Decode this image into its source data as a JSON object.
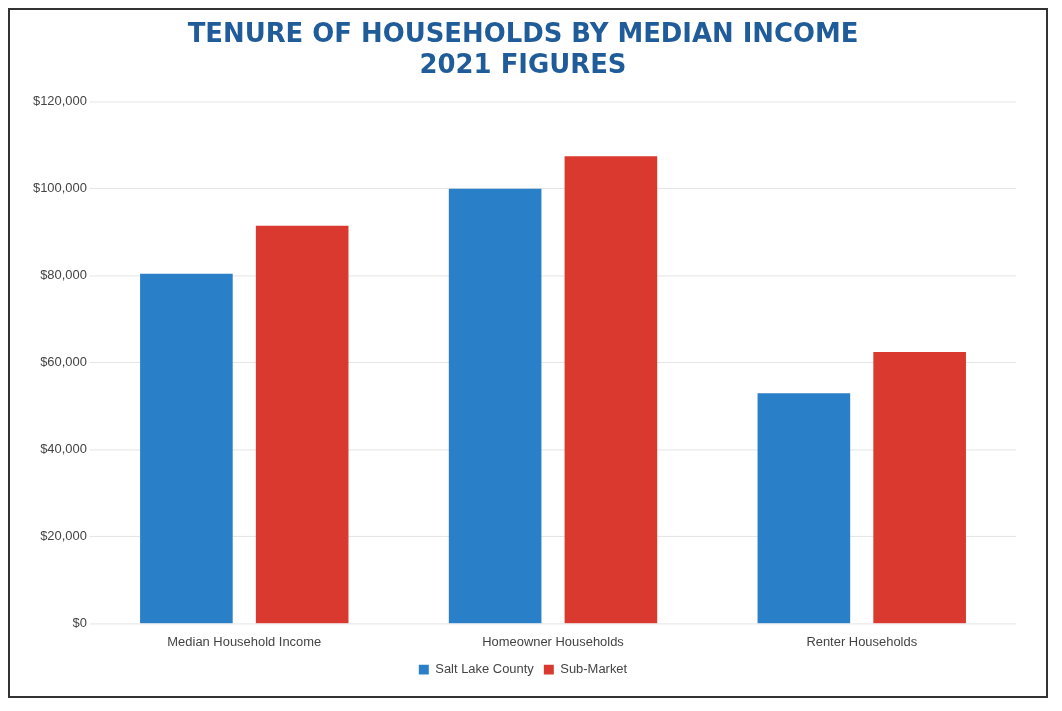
{
  "chart_data": {
    "type": "bar",
    "title": "TENURE OF HOUSEHOLDS BY MEDIAN INCOME",
    "subtitle": "2021 FIGURES",
    "categories": [
      "Median Household Income",
      "Homeowner Households",
      "Renter Households"
    ],
    "series": [
      {
        "name": "Salt Lake County",
        "color": "#2a7fc9",
        "values": [
          80500,
          100000,
          53000
        ]
      },
      {
        "name": "Sub-Market",
        "color": "#d9392e",
        "values": [
          91500,
          107500,
          62500
        ]
      }
    ],
    "ylim": [
      0,
      120000
    ],
    "yticks": [
      {
        "value": 0,
        "label": "$0"
      },
      {
        "value": 20000,
        "label": "$20,000"
      },
      {
        "value": 40000,
        "label": "$40,000"
      },
      {
        "value": 60000,
        "label": "$60,000"
      },
      {
        "value": 80000,
        "label": "$80,000"
      },
      {
        "value": 100000,
        "label": "$100,000"
      },
      {
        "value": 120000,
        "label": "$120,000"
      }
    ],
    "grid": "y",
    "legend": "bottom"
  }
}
